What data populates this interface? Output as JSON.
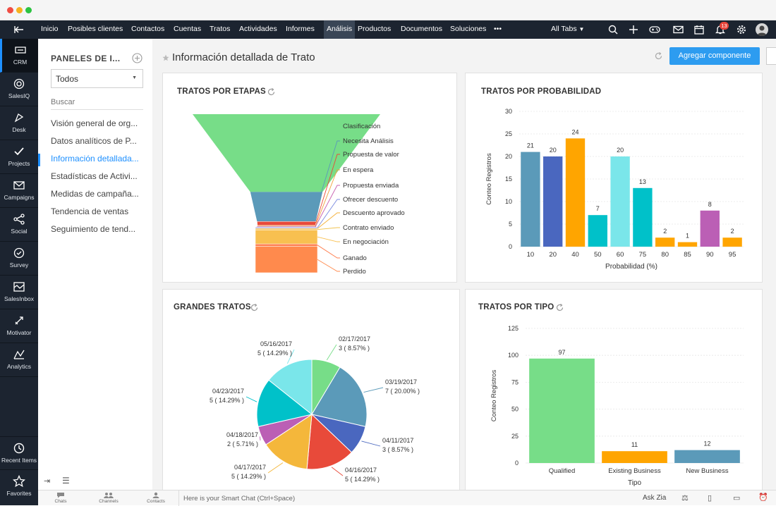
{
  "window": {
    "dots": [
      "#f04d43",
      "#f6b11e",
      "#2cc341"
    ]
  },
  "leftbar": {
    "items": [
      {
        "label": "CRM",
        "icon": "crm-icon"
      },
      {
        "label": "SalesIQ",
        "icon": "salesiq-icon"
      },
      {
        "label": "Desk",
        "icon": "desk-icon"
      },
      {
        "label": "Projects",
        "icon": "projects-icon"
      },
      {
        "label": "Campaigns",
        "icon": "campaigns-icon"
      },
      {
        "label": "Social",
        "icon": "social-icon"
      },
      {
        "label": "Survey",
        "icon": "survey-icon"
      },
      {
        "label": "SalesInbox",
        "icon": "salesinbox-icon"
      },
      {
        "label": "Motivator",
        "icon": "motivator-icon"
      },
      {
        "label": "Analytics",
        "icon": "analytics-icon"
      }
    ],
    "bottom": [
      {
        "label": "Recent Items"
      },
      {
        "label": "Favorites"
      }
    ]
  },
  "topnav": {
    "items": [
      "Inicio",
      "Posibles clientes",
      "Contactos",
      "Cuentas",
      "Tratos",
      "Actividades",
      "Informes",
      "Análisis",
      "Productos",
      "Documentos",
      "Soluciones",
      "•••"
    ],
    "active": "Análisis",
    "all_tabs": "All Tabs",
    "notification_count": "13"
  },
  "subnav": {
    "title": "PANELES DE I...",
    "dropdown_value": "Todos",
    "search_placeholder": "Buscar",
    "items": [
      "Visión general de org...",
      "Datos analíticos de P...",
      "Información detallada...",
      "Estadísticas de Activi...",
      "Medidas de campaña...",
      "Tendencia de ventas",
      "Seguimiento de tend..."
    ],
    "active_index": 2
  },
  "main": {
    "title": "Información detallada de Trato",
    "add_button": "Agregar componente"
  },
  "cards": {
    "funnel": {
      "title": "TRATOS POR ETAPAS"
    },
    "probability": {
      "title": "TRATOS POR PROBABILIDAD"
    },
    "big": {
      "title": "GRANDES TRATOS"
    },
    "type": {
      "title": "TRATOS POR TIPO"
    }
  },
  "bottombar": {
    "chats": "Chats",
    "channels": "Channels",
    "contacts": "Contacts",
    "smart_chat": "Here is your Smart Chat (Ctrl+Space)",
    "ask_zia": "Ask Zia"
  },
  "chart_data": [
    {
      "type": "funnel",
      "title": "TRATOS POR ETAPAS",
      "stages": [
        {
          "name": "Clasificación",
          "color": "#77dd88",
          "relative_value": 100
        },
        {
          "name": "Necesita Análisis",
          "color": "#5b9ab9",
          "relative_value": 38
        },
        {
          "name": "Propuesta de valor",
          "color": "#e84a3a",
          "relative_value": 5
        },
        {
          "name": "En espera",
          "color": "#f0a03c",
          "relative_value": 1
        },
        {
          "name": "Propuesta enviada",
          "color": "#c860b0",
          "relative_value": 1
        },
        {
          "name": "Ofrecer descuento",
          "color": "#7a8be0",
          "relative_value": 1
        },
        {
          "name": "Descuento aprovado",
          "color": "#f4b13a",
          "relative_value": 1
        },
        {
          "name": "Contrato enviado",
          "color": "#f0c14d",
          "relative_value": 1
        },
        {
          "name": "En negociación",
          "color": "#f8c050",
          "relative_value": 18
        },
        {
          "name": "Ganado",
          "color": "#ff7f50",
          "relative_value": 3
        },
        {
          "name": "Perdido",
          "color": "#ff8a4d",
          "relative_value": 34
        }
      ]
    },
    {
      "type": "bar",
      "title": "TRATOS POR PROBABILIDAD",
      "xlabel": "Probabilidad   (%)",
      "ylabel": "Conteo Registros",
      "ylim": [
        0,
        30
      ],
      "yticks": [
        0,
        5,
        10,
        15,
        20,
        25,
        30
      ],
      "categories": [
        "10",
        "20",
        "40",
        "50",
        "60",
        "75",
        "80",
        "85",
        "90",
        "95"
      ],
      "values": [
        21,
        20,
        24,
        7,
        20,
        13,
        2,
        1,
        8,
        2
      ],
      "colors": [
        "#5b9ab9",
        "#4a67bf",
        "#ffa500",
        "#00c1c9",
        "#7ae6ea",
        "#00c1c9",
        "#ffa500",
        "#ffa500",
        "#bb5fb5",
        "#ffa500"
      ],
      "grid": true
    },
    {
      "type": "pie",
      "title": "GRANDES TRATOS",
      "slices": [
        {
          "label": "02/17/2017",
          "value_label": "3 ( 8.57% )",
          "percent": 8.57,
          "color": "#77dd88"
        },
        {
          "label": "03/19/2017",
          "value_label": "7 ( 20.00% )",
          "percent": 20.0,
          "color": "#5b9ab9"
        },
        {
          "label": "04/11/2017",
          "value_label": "3 ( 8.57% )",
          "percent": 8.57,
          "color": "#4a67bf"
        },
        {
          "label": "04/16/2017",
          "value_label": "5 ( 14.29% )",
          "percent": 14.29,
          "color": "#e84a3a"
        },
        {
          "label": "04/17/2017",
          "value_label": "5 ( 14.29% )",
          "percent": 14.29,
          "color": "#f4b73b"
        },
        {
          "label": "04/18/2017",
          "value_label": "2 ( 5.71% )",
          "percent": 5.71,
          "color": "#bb5fb5"
        },
        {
          "label": "04/23/2017",
          "value_label": "5 ( 14.29% )",
          "percent": 14.29,
          "color": "#00c1c9"
        },
        {
          "label": "05/16/2017",
          "value_label": "5 ( 14.29% )",
          "percent": 14.29,
          "color": "#7ae6ea"
        }
      ]
    },
    {
      "type": "bar",
      "title": "TRATOS POR TIPO",
      "xlabel": "Tipo",
      "ylabel": "Conteo Registros",
      "ylim": [
        0,
        125
      ],
      "yticks": [
        0,
        25,
        50,
        75,
        100,
        125
      ],
      "categories": [
        "Qualified",
        "Existing Business",
        "New Business"
      ],
      "values": [
        97,
        11,
        12
      ],
      "colors": [
        "#77dd88",
        "#ffa500",
        "#5b9ab9"
      ],
      "grid": true
    }
  ]
}
